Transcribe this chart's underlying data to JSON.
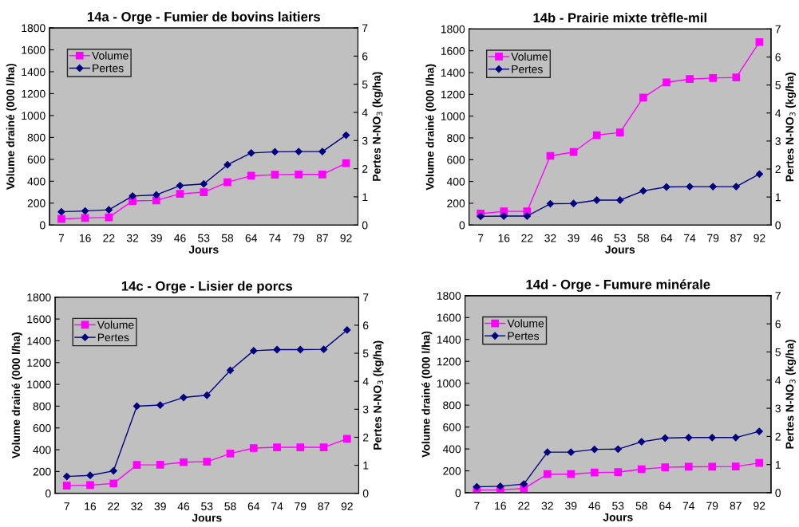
{
  "chart_data": [
    {
      "type": "line",
      "title": "14a - Orge - Fumier de bovins laitiers",
      "xlabel": "Jours",
      "ylabel": "Volume drainé (000 l/ha)",
      "y2label": "Pertes N-NO$_{3}$ (kg/ha)",
      "categories": [
        "7",
        "16",
        "22",
        "32",
        "39",
        "46",
        "53",
        "58",
        "64",
        "74",
        "79",
        "87",
        "92"
      ],
      "ylim": [
        0,
        1800
      ],
      "yticks": [
        0,
        200,
        400,
        600,
        800,
        1000,
        1200,
        1400,
        1600,
        1800
      ],
      "y2lim": [
        0,
        7
      ],
      "y2ticks": [
        0,
        1,
        2,
        3,
        4,
        5,
        6,
        7
      ],
      "grid": false,
      "legend": "top left",
      "series": [
        {
          "name": "Volume",
          "color": "#ff00ff",
          "marker": "square",
          "values": [
            55,
            65,
            70,
            220,
            225,
            285,
            300,
            390,
            450,
            460,
            462,
            462,
            565
          ]
        },
        {
          "name": "Pertes",
          "color": "#000080",
          "marker": "diamond",
          "axis": "y2",
          "values": [
            0.47,
            0.5,
            0.54,
            1.03,
            1.07,
            1.4,
            1.46,
            2.14,
            2.56,
            2.6,
            2.61,
            2.61,
            3.19
          ]
        }
      ]
    },
    {
      "type": "line",
      "title": "14b - Prairie mixte trèfle-mil",
      "xlabel": "Jours",
      "ylabel": "Volume drainé (000 l/ha)",
      "y2label": "Pertes N-NO$_{3}$ (kg/ha)",
      "categories": [
        "7",
        "16",
        "22",
        "32",
        "39",
        "46",
        "53",
        "58",
        "64",
        "74",
        "79",
        "87",
        "92"
      ],
      "ylim": [
        0,
        1800
      ],
      "yticks": [
        0,
        200,
        400,
        600,
        800,
        1000,
        1200,
        1400,
        1600,
        1800
      ],
      "y2lim": [
        0,
        7
      ],
      "y2ticks": [
        0,
        1,
        2,
        3,
        4,
        5,
        6,
        7
      ],
      "grid": false,
      "legend": "top left",
      "series": [
        {
          "name": "Volume",
          "color": "#ff00ff",
          "marker": "square",
          "values": [
            105,
            125,
            125,
            635,
            670,
            825,
            850,
            1170,
            1310,
            1340,
            1350,
            1355,
            1680
          ]
        },
        {
          "name": "Pertes",
          "color": "#000080",
          "marker": "diamond",
          "axis": "y2",
          "values": [
            0.31,
            0.32,
            0.32,
            0.76,
            0.77,
            0.89,
            0.89,
            1.22,
            1.36,
            1.37,
            1.37,
            1.37,
            1.82
          ]
        }
      ]
    },
    {
      "type": "line",
      "title": "14c - Orge - Lisier de porcs",
      "xlabel": "Jours",
      "ylabel": "Volume drainé (000 l/ha)",
      "y2label": "Pertes N-NO$_{3}$ (kg/ha)",
      "categories": [
        "7",
        "16",
        "22",
        "32",
        "39",
        "46",
        "53",
        "58",
        "64",
        "74",
        "79",
        "87",
        "92"
      ],
      "ylim": [
        0,
        1800
      ],
      "yticks": [
        0,
        200,
        400,
        600,
        800,
        1000,
        1200,
        1400,
        1600,
        1800
      ],
      "y2lim": [
        0,
        7
      ],
      "y2ticks": [
        0,
        1,
        2,
        3,
        4,
        5,
        6,
        7
      ],
      "grid": false,
      "legend": "top left",
      "series": [
        {
          "name": "Volume",
          "color": "#ff00ff",
          "marker": "square",
          "values": [
            70,
            75,
            90,
            260,
            262,
            285,
            290,
            365,
            415,
            422,
            422,
            422,
            500
          ]
        },
        {
          "name": "Pertes",
          "color": "#000080",
          "marker": "diamond",
          "axis": "y2",
          "values": [
            0.6,
            0.64,
            0.8,
            3.11,
            3.15,
            3.42,
            3.5,
            4.39,
            5.09,
            5.13,
            5.13,
            5.14,
            5.83
          ]
        }
      ]
    },
    {
      "type": "line",
      "title": "14d - Orge - Fumure minérale",
      "xlabel": "Jours",
      "ylabel": "Volume drainé (000 l/ha)",
      "y2label": "Pertes N-NO$_{3}$ (kg/ha)",
      "categories": [
        "7",
        "16",
        "22",
        "32",
        "39",
        "46",
        "53",
        "58",
        "64",
        "74",
        "79",
        "87",
        "92"
      ],
      "ylim": [
        0,
        1800
      ],
      "yticks": [
        0,
        200,
        400,
        600,
        800,
        1000,
        1200,
        1400,
        1600,
        1800
      ],
      "y2lim": [
        0,
        7
      ],
      "y2ticks": [
        0,
        1,
        2,
        3,
        4,
        5,
        6,
        7
      ],
      "grid": false,
      "legend": "top left",
      "series": [
        {
          "name": "Volume",
          "color": "#ff00ff",
          "marker": "square",
          "values": [
            25,
            27,
            38,
            170,
            170,
            185,
            188,
            215,
            232,
            237,
            238,
            240,
            272
          ]
        },
        {
          "name": "Pertes",
          "color": "#000080",
          "marker": "diamond",
          "axis": "y2",
          "values": [
            0.21,
            0.23,
            0.31,
            1.44,
            1.44,
            1.54,
            1.55,
            1.81,
            1.94,
            1.96,
            1.96,
            1.96,
            2.18
          ]
        }
      ]
    }
  ]
}
